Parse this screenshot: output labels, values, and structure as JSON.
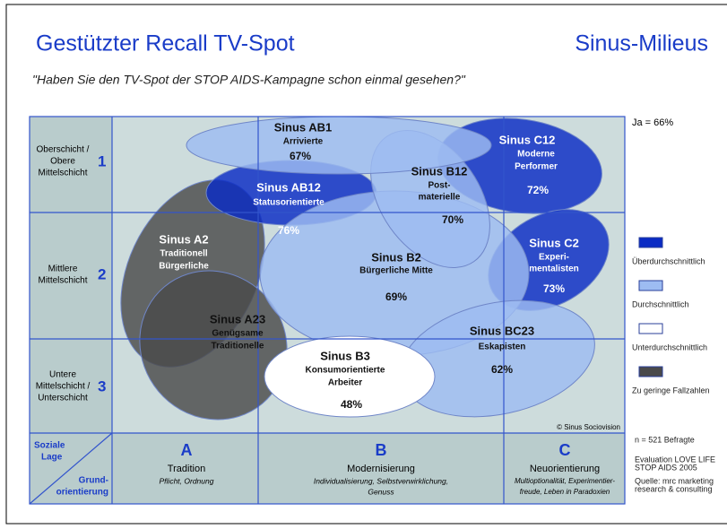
{
  "header": {
    "title": "Gestützter Recall TV-Spot",
    "brand": "Sinus-Milieus",
    "question": "\"Haben Sie den TV-Spot der STOP AIDS-Kampagne schon einmal gesehen?\""
  },
  "rows": [
    {
      "label": [
        "Oberschicht /",
        "Obere",
        "Mittelschicht"
      ],
      "number": "1"
    },
    {
      "label": [
        "Mittlere",
        "Mittelschicht"
      ],
      "number": "2"
    },
    {
      "label": [
        "Untere",
        "Mittelschicht /",
        "Unterschicht"
      ],
      "number": "3"
    }
  ],
  "corner": {
    "social": [
      "Soziale",
      "Lage"
    ],
    "orientation": [
      "Grund-",
      "orientierung"
    ]
  },
  "columns": [
    {
      "letter": "A",
      "name": "Tradition",
      "desc": [
        "Pflicht, Ordnung"
      ]
    },
    {
      "letter": "B",
      "name": "Modernisierung",
      "desc": [
        "Individualisierung, Selbstverwirklichung,",
        "Genuss"
      ]
    },
    {
      "letter": "C",
      "name": "Neuorientierung",
      "desc": [
        "Multioptionalität, Experimentier-",
        "freude, Leben in Paradoxien"
      ]
    }
  ],
  "milieus": [
    {
      "name": "Sinus AB1",
      "label": [
        "Arrivierte"
      ],
      "share": "67%"
    },
    {
      "name": "Sinus AB12",
      "label": [
        "Statusorientierte"
      ],
      "share": "76%"
    },
    {
      "name": "Sinus C12",
      "label": [
        "Moderne",
        "Performer"
      ],
      "share": "72%"
    },
    {
      "name": "Sinus B12",
      "label": [
        "Post-",
        "materielle"
      ],
      "share": "70%"
    },
    {
      "name": "Sinus A2",
      "label": [
        "Traditionell",
        "Bürgerliche"
      ]
    },
    {
      "name": "Sinus A23",
      "label": [
        "Genügsame",
        "Traditionelle"
      ]
    },
    {
      "name": "Sinus B2",
      "label": [
        "Bürgerliche Mitte"
      ],
      "share": "69%"
    },
    {
      "name": "Sinus C2",
      "label": [
        "Experi-",
        "mentalisten"
      ],
      "share": "73%"
    },
    {
      "name": "Sinus B3",
      "label": [
        "Konsumorientierte",
        "Arbeiter"
      ],
      "share": "48%"
    },
    {
      "name": "Sinus BC23",
      "label": [
        "Eskapisten"
      ],
      "share": "62%"
    }
  ],
  "copyright": "© Sinus Sociovision",
  "total": "Ja = 66%",
  "legend": [
    {
      "label": "Überdurchschnittlich",
      "color": "#0a2bc4"
    },
    {
      "label": "Durchschnittlich",
      "color": "#9dbcf2"
    },
    {
      "label": "Unterdurchschnittlich",
      "color": "#ffffff"
    },
    {
      "label": "Zu geringe Fallzahlen",
      "color": "#4a4a4a"
    }
  ],
  "notes": {
    "sample": "n = 521 Befragte",
    "evaluation": [
      "Evaluation LOVE LIFE",
      "STOP AIDS 2005"
    ],
    "source": [
      "Quelle: mrc marketing",
      "research & consulting"
    ]
  }
}
